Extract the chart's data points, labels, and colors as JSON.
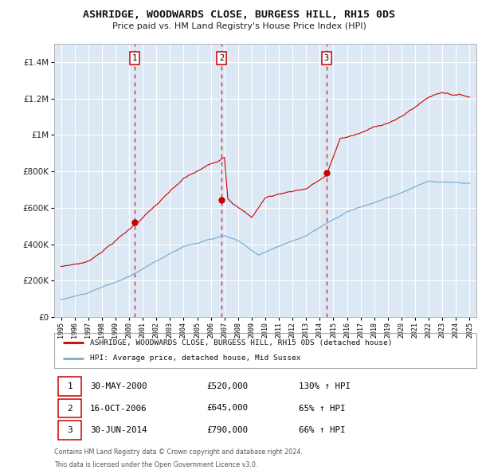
{
  "title": "ASHRIDGE, WOODWARDS CLOSE, BURGESS HILL, RH15 0DS",
  "subtitle": "Price paid vs. HM Land Registry's House Price Index (HPI)",
  "legend_red": "ASHRIDGE, WOODWARDS CLOSE, BURGESS HILL, RH15 0DS (detached house)",
  "legend_blue": "HPI: Average price, detached house, Mid Sussex",
  "transactions": [
    {
      "num": 1,
      "date": "30-MAY-2000",
      "price": 520000,
      "pct": "130%",
      "dir": "↑",
      "x_year": 2000.41
    },
    {
      "num": 2,
      "date": "16-OCT-2006",
      "price": 645000,
      "pct": "65%",
      "dir": "↑",
      "x_year": 2006.79
    },
    {
      "num": 3,
      "date": "30-JUN-2014",
      "price": 790000,
      "pct": "66%",
      "dir": "↑",
      "x_year": 2014.5
    }
  ],
  "footnote1": "Contains HM Land Registry data © Crown copyright and database right 2024.",
  "footnote2": "This data is licensed under the Open Government Licence v3.0.",
  "ylim": [
    0,
    1500000
  ],
  "yticks": [
    0,
    200000,
    400000,
    600000,
    800000,
    1000000,
    1200000,
    1400000
  ],
  "ytick_labels": [
    "£0",
    "£200K",
    "£400K",
    "£600K",
    "£800K",
    "£1M",
    "£1.2M",
    "£1.4M"
  ],
  "xlim_start": 1994.5,
  "xlim_end": 2025.5,
  "background_color": "#dce9f5",
  "grid_color": "#ffffff",
  "red_color": "#cc0000",
  "blue_color": "#7aaed4",
  "dot_color": "#cc0000"
}
